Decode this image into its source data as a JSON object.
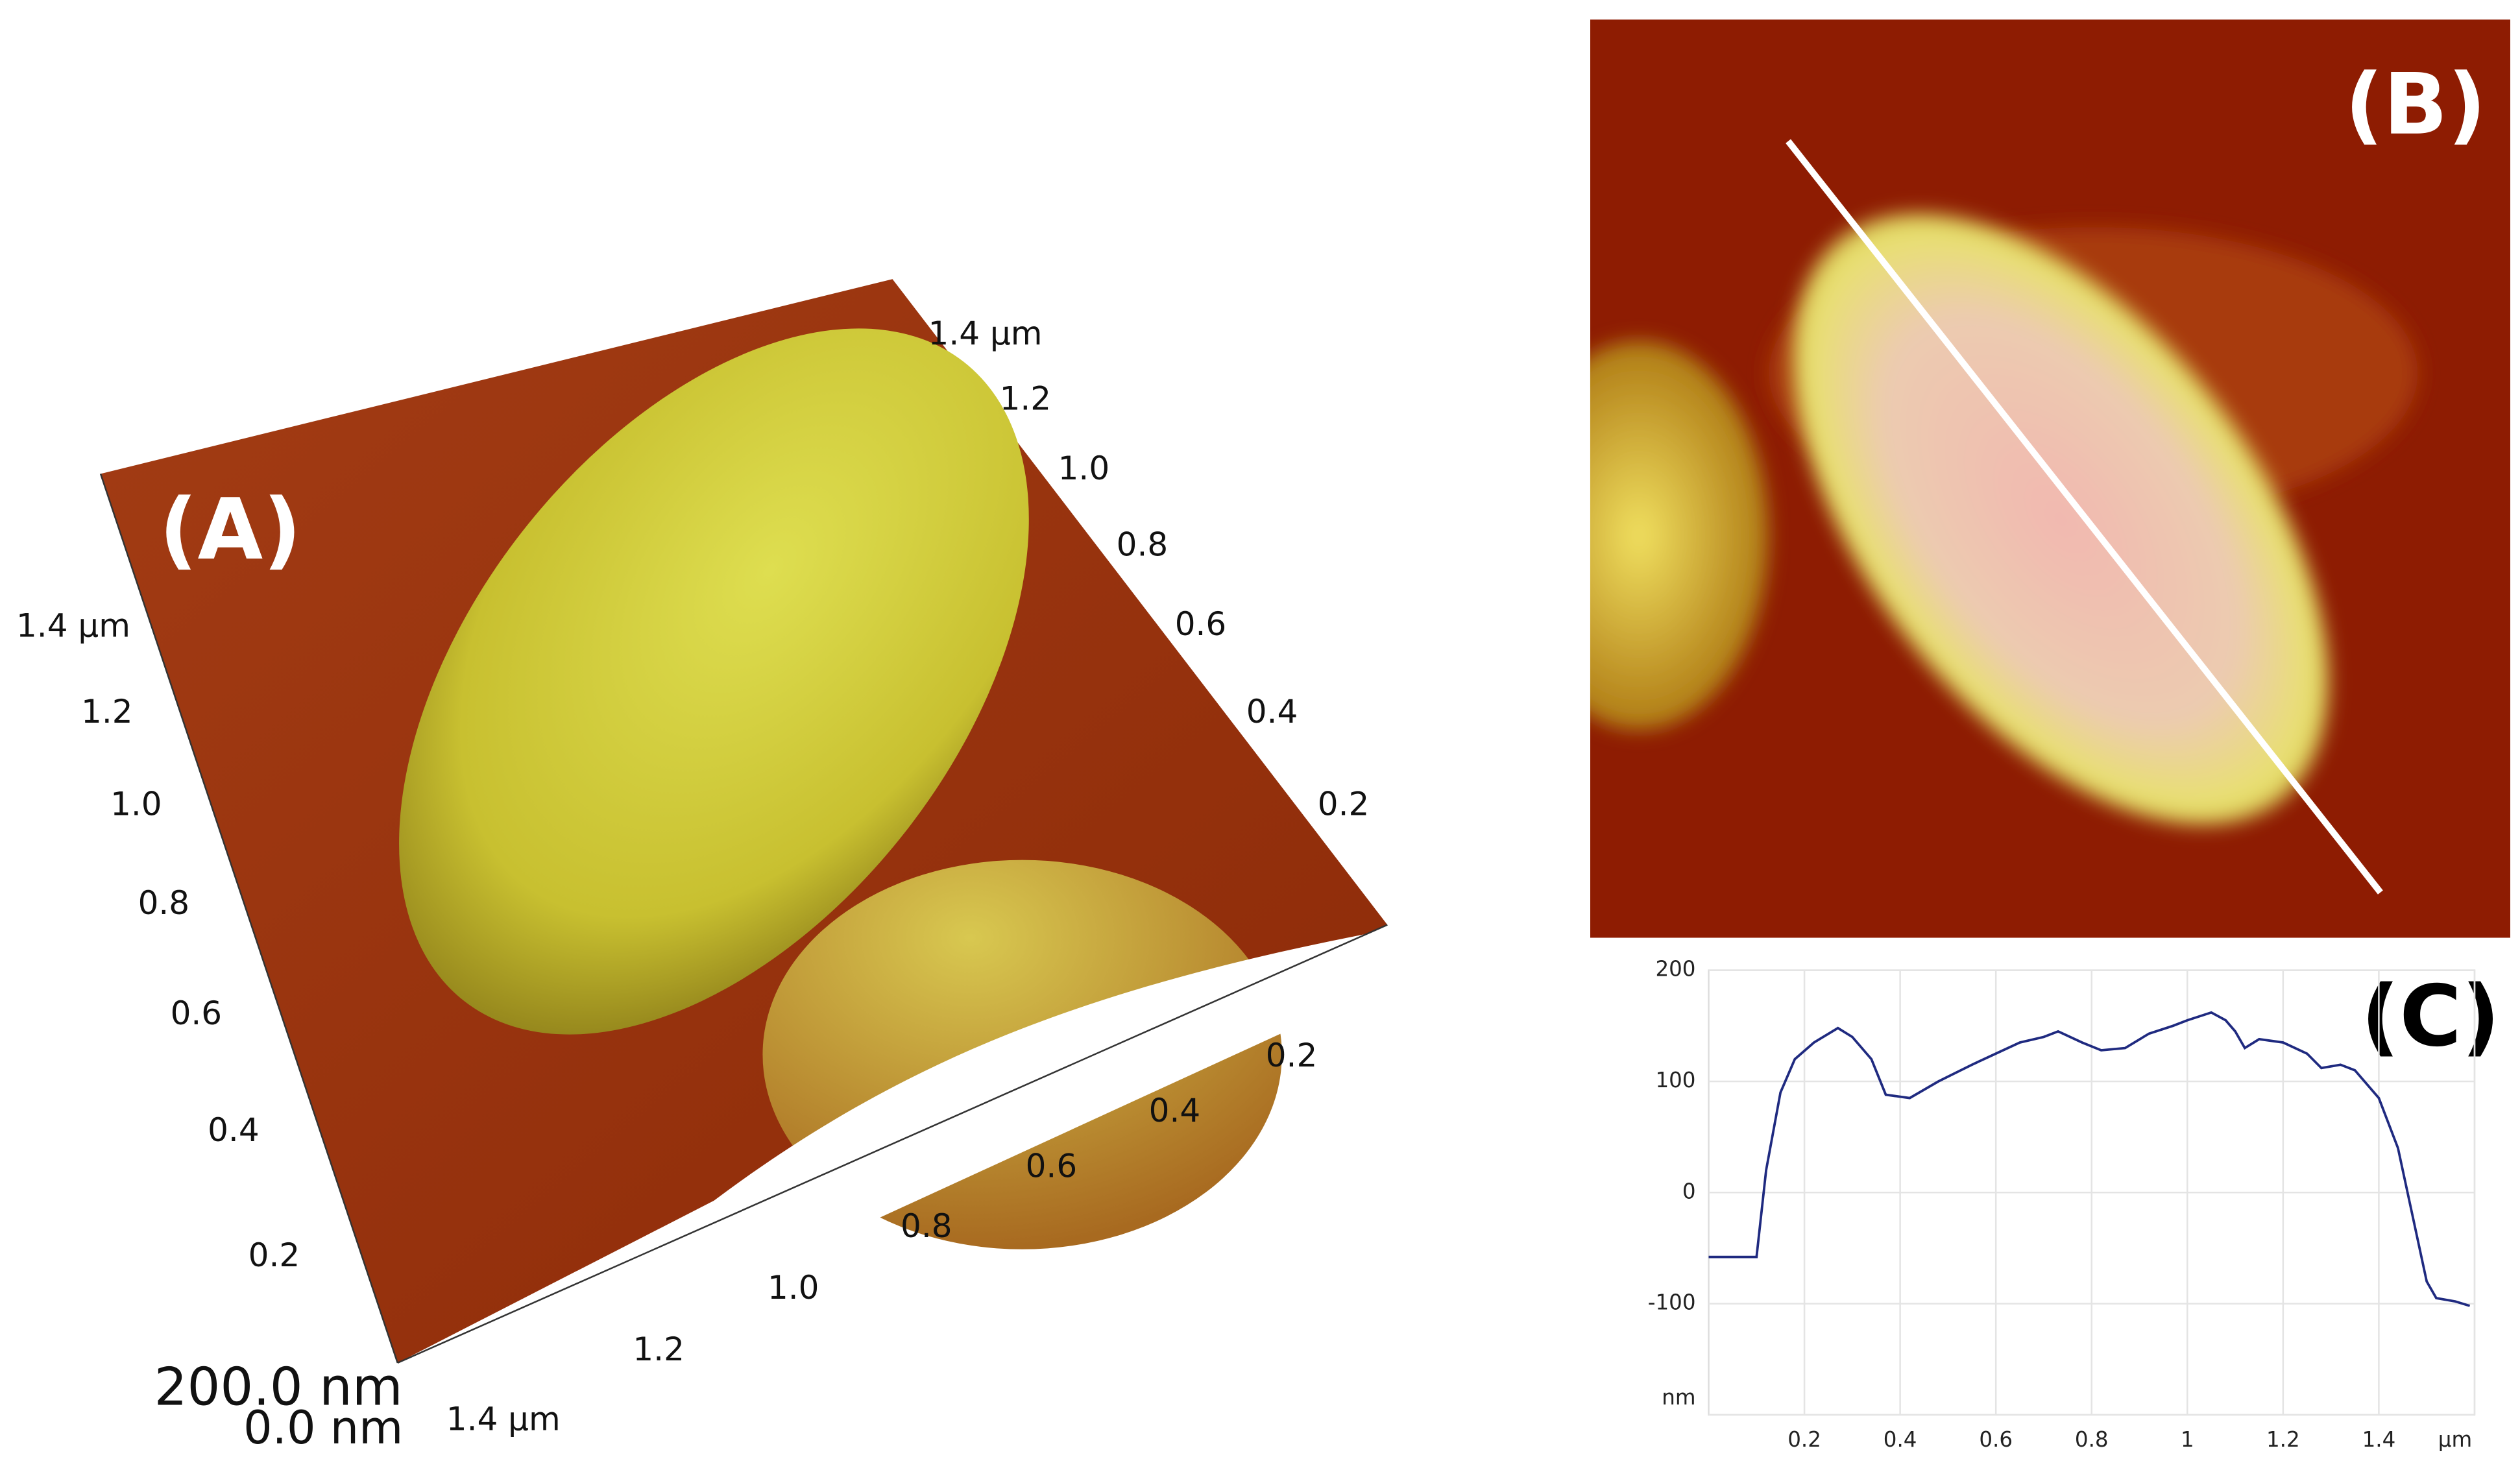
{
  "panels": [
    {
      "label": "(A)",
      "z_axis": [
        "200.0 nm",
        "0.0 nm"
      ],
      "left_axis": [
        "1.4 µm",
        "1.2",
        "1.0",
        "0.8",
        "0.6",
        "0.4",
        "0.2"
      ],
      "bottom_axis": [
        "1.4 µm",
        "1.2",
        "1.0",
        "0.8",
        "0.6",
        "0.4",
        "0.2"
      ],
      "right_axis": [
        "0.2",
        "0.4",
        "0.6",
        "0.8",
        "1.0",
        "1.2",
        "1.4 µm"
      ]
    },
    {
      "label": "(B)"
    }
  ],
  "chart_data": {
    "type": "line",
    "panel_label": "(C)",
    "x": [
      0,
      0.08,
      0.1,
      0.12,
      0.15,
      0.18,
      0.22,
      0.27,
      0.3,
      0.34,
      0.37,
      0.42,
      0.48,
      0.55,
      0.6,
      0.65,
      0.7,
      0.73,
      0.78,
      0.82,
      0.87,
      0.92,
      0.97,
      1.0,
      1.05,
      1.08,
      1.1,
      1.12,
      1.15,
      1.2,
      1.25,
      1.28,
      1.32,
      1.35,
      1.4,
      1.44,
      1.47,
      1.5,
      1.52,
      1.56,
      1.59
    ],
    "values": [
      -58,
      -58,
      -58,
      20,
      90,
      120,
      135,
      148,
      140,
      120,
      88,
      85,
      100,
      115,
      125,
      135,
      140,
      145,
      135,
      128,
      130,
      143,
      150,
      155,
      162,
      155,
      145,
      130,
      138,
      135,
      125,
      112,
      115,
      110,
      85,
      40,
      -20,
      -80,
      -95,
      -98,
      -102
    ],
    "color": "#1f2a80",
    "xlim": [
      0,
      1.6
    ],
    "xticks": [
      0.2,
      0.4,
      0.6,
      0.8,
      1,
      1.2,
      1.4,
      {
        "value": 1.6,
        "label": "µm"
      }
    ],
    "ylim": [
      -200,
      200
    ],
    "yticks": [
      {
        "value": -200,
        "label": "nm"
      },
      -100,
      0,
      100,
      200
    ],
    "grid": true
  }
}
